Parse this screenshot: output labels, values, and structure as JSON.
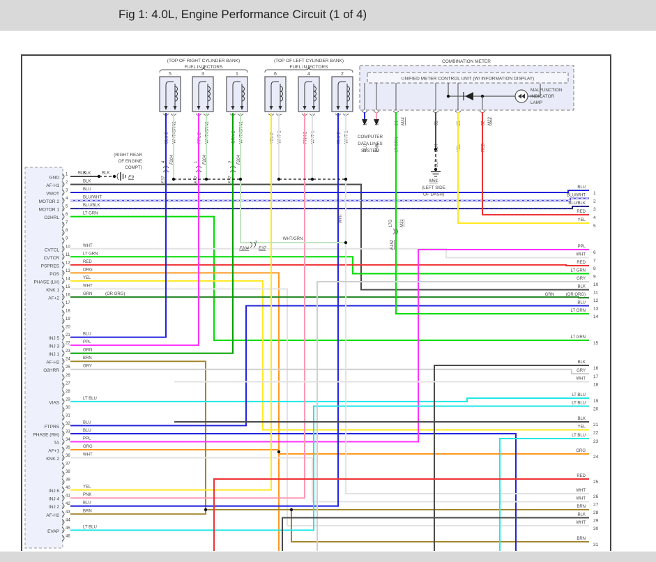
{
  "title": "Fig 1: 4.0L, Engine Performance Circuit (1 of 4)",
  "colors": {
    "BLK": "#4a4a4a",
    "BLU": "#2222dd",
    "BLU_WHT": "#4848e0",
    "BLU_BLK": "#2a2ab0",
    "LT_GRN": "#00dd00",
    "GRN": "#00a000",
    "GRN_OR_ORG": "#2a8a2a",
    "WHT": "#e2e2e2",
    "RED": "#ee3333",
    "ORG": "#ff9922",
    "YEL": "#ffe822",
    "PPL": "#ff33ff",
    "BRN": "#a3862c",
    "GRY": "#cfcfcf",
    "LT_BLU": "#22e6e6",
    "PNK": "#ff99b4",
    "WHT_GRN": "#c2e6c2",
    "JUNCTION": "#111111"
  },
  "injector_banks": [
    {
      "heading_top": "(TOP OF RIGHT CYLINDER BANK)",
      "heading_bottom": "FUEL INJECTORS",
      "injectors": [
        {
          "num": "5",
          "wire1": "BLU 2",
          "wire2": "WHT/GRN1",
          "conn_pin": "4",
          "conn_a": "F204",
          "conn_b": "E37"
        },
        {
          "num": "3",
          "wire1": "PPL 2",
          "wire2": "WHT/GRN1",
          "conn_pin": "1",
          "conn_a": "F204",
          "conn_b": "E37"
        },
        {
          "num": "1",
          "wire1": "GRN 2",
          "wire2": "WHT/GRN1",
          "conn_pin": "2",
          "conn_a": "F204",
          "conn_b": "E37"
        }
      ]
    },
    {
      "heading_top": "(TOP OF LEFT CYLINDER BANK)",
      "heading_bottom": "FUEL INJECTORS",
      "injectors": [
        {
          "num": "6",
          "wire1": "YEL 2",
          "wire2": "WHT 1"
        },
        {
          "num": "4",
          "wire1": "PNK 2",
          "wire2": "WHT 1"
        },
        {
          "num": "2",
          "wire1": "BLU 2",
          "wire2": "WHT 1"
        }
      ]
    }
  ],
  "combination_meter": {
    "title": "COMBINATION METER",
    "control_unit": "UNIFIED METER CONTROL UNIT (W/ INFORMATION DISPLAY)",
    "mil_label": [
      "MALFUNCTION",
      "INDICATOR",
      "LAMP"
    ],
    "pins": [
      {
        "num": "1",
        "wire": "BLU"
      },
      {
        "num": "13",
        "wire": "PNK"
      },
      {
        "num": "24",
        "connector": "M24",
        "wire": "LT GRN"
      },
      {
        "num": "31",
        "wire": "BLK"
      },
      {
        "num": "25",
        "wire": "YEL"
      },
      {
        "num": "32",
        "connector": "M23",
        "wire": "RED"
      }
    ]
  },
  "computer_data_lines": [
    "COMPUTER",
    "DATA LINES",
    "SYSTEM"
  ],
  "grounds": {
    "e9": {
      "name": "E9",
      "wire": "BLK",
      "location": [
        "(RIGHT REAR",
        "OF ENGINE",
        "COMPT)"
      ]
    },
    "m61": {
      "name": "M61",
      "wire": "BLK",
      "location": [
        "(LEFT SIDE",
        "OF DASH)"
      ]
    }
  },
  "inline_connectors": {
    "whtgrn": {
      "a": "F204",
      "pin": "3",
      "b": "E37",
      "bus_label": "WHT/GRN"
    },
    "meter_ltgrn": {
      "pin": "17G",
      "a": "E152",
      "b": "M31"
    },
    "wht_bus_label": "WHT"
  },
  "ecm_connector": {
    "pins": [
      {
        "num": "1",
        "label": "GND",
        "wire": "BLK",
        "wire2": "BLK"
      },
      {
        "num": "2",
        "label": "AF-H1",
        "wire": "BLK"
      },
      {
        "num": "3",
        "label": "VMOT",
        "wire": "BLU"
      },
      {
        "num": "4",
        "label": "MOTOR 2",
        "wire": "BLU/WHT"
      },
      {
        "num": "5",
        "label": "MOTOR 1",
        "wire": "BLU/BLK"
      },
      {
        "num": "6",
        "label": "O2HRL",
        "wire": "LT GRN"
      },
      {
        "num": "7"
      },
      {
        "num": "8"
      },
      {
        "num": "9"
      },
      {
        "num": "10",
        "label": "CVTCL",
        "wire": "WHT"
      },
      {
        "num": "11",
        "label": "CVTCR",
        "wire": "LT GRN"
      },
      {
        "num": "12",
        "label": "PSPRES",
        "wire": "RED"
      },
      {
        "num": "13",
        "label": "POS",
        "wire": "ORG"
      },
      {
        "num": "14",
        "label": "PHASE (LH)",
        "wire": "YEL"
      },
      {
        "num": "15",
        "label": "KNK 1",
        "wire": "WHT"
      },
      {
        "num": "16",
        "label": "AF+2",
        "wire": "GRN",
        "wire2": "(OR ORG)"
      },
      {
        "num": "17"
      },
      {
        "num": "18"
      },
      {
        "num": "19"
      },
      {
        "num": "20"
      },
      {
        "num": "21",
        "label": "INJ 5",
        "wire": "BLU"
      },
      {
        "num": "22",
        "label": "INJ 3",
        "wire": "PPL"
      },
      {
        "num": "23",
        "label": "INJ 1",
        "wire": "GRN"
      },
      {
        "num": "24",
        "label": "AF-H2",
        "wire": "BRN"
      },
      {
        "num": "25",
        "label": "O2HRR",
        "wire": "GRY"
      },
      {
        "num": "26"
      },
      {
        "num": "27"
      },
      {
        "num": "28"
      },
      {
        "num": "29",
        "label": "VIAS",
        "wire": "LT BLU"
      },
      {
        "num": "30"
      },
      {
        "num": "31"
      },
      {
        "num": "32",
        "label": "FTPRS",
        "wire": "BLU"
      },
      {
        "num": "33",
        "label": "PHASE (RH)",
        "wire": "BLU"
      },
      {
        "num": "34",
        "label": "TA",
        "wire": "PPL"
      },
      {
        "num": "35",
        "label": "AF+1",
        "wire": "ORG"
      },
      {
        "num": "36",
        "label": "KNK 2",
        "wire": "WHT"
      },
      {
        "num": "37"
      },
      {
        "num": "38"
      },
      {
        "num": "39"
      },
      {
        "num": "40",
        "label": "INJ 6",
        "wire": "YEL"
      },
      {
        "num": "41",
        "label": "INJ 4",
        "wire": "PNK"
      },
      {
        "num": "42",
        "label": "INJ 2",
        "wire": "BLU"
      },
      {
        "num": "43",
        "label": "AF-H2",
        "wire": "BRN"
      },
      {
        "num": "44"
      },
      {
        "num": "45",
        "label": "EVAP",
        "wire": "LT BLU"
      },
      {
        "num": "46"
      }
    ]
  },
  "right_pins": [
    {
      "num": "1",
      "wire": "BLU"
    },
    {
      "num": "2",
      "wire": "BLU/WHT"
    },
    {
      "num": "3",
      "wire": "BLU/BLK"
    },
    {
      "num": "4",
      "wire": "RED"
    },
    {
      "num": "5",
      "wire": "YEL"
    },
    {
      "num": "6",
      "wire": "PPL"
    },
    {
      "num": "7",
      "wire": "WHT"
    },
    {
      "num": "8",
      "wire": "RED"
    },
    {
      "num": "9",
      "wire": "LT GRN"
    },
    {
      "num": "10",
      "wire": "GRY"
    },
    {
      "num": "11",
      "wire": "BLK"
    },
    {
      "num": "12",
      "wire": "GRN",
      "wire2": "(OR ORG)"
    },
    {
      "num": "13",
      "wire": "BLU"
    },
    {
      "num": "14",
      "wire": "LT GRN"
    },
    {
      "num": "15",
      "wire": "LT GRN"
    },
    {
      "num": "16",
      "wire": "BLK"
    },
    {
      "num": "17",
      "wire": "GRY"
    },
    {
      "num": "18",
      "wire": "WHT"
    },
    {
      "num": "19",
      "wire": "LT BLU"
    },
    {
      "num": "20",
      "wire": "LT BLU"
    },
    {
      "num": "21",
      "wire": "BLK"
    },
    {
      "num": "22",
      "wire": "YEL"
    },
    {
      "num": "23",
      "wire": "LT BLU"
    },
    {
      "num": "24",
      "wire": "ORG"
    },
    {
      "num": "25",
      "wire": "RED"
    },
    {
      "num": "26",
      "wire": "WHT"
    },
    {
      "num": "27",
      "wire": "WHT"
    },
    {
      "num": "28",
      "wire": "BRN"
    },
    {
      "num": "29",
      "wire": "BLK"
    },
    {
      "num": "30",
      "wire": "WHT"
    },
    {
      "num": "31",
      "wire": "BRN"
    }
  ]
}
